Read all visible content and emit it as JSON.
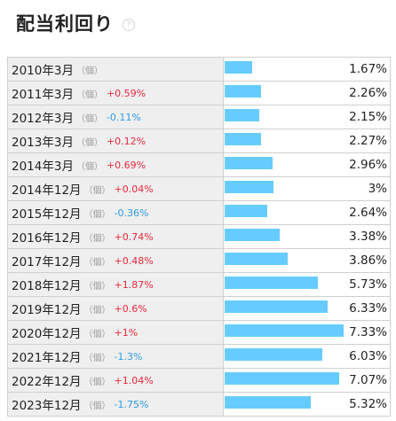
{
  "title": "配当利回り",
  "help_icon": "?",
  "unit_label": "（個）",
  "colors": {
    "bar": "#66ccff",
    "up": "#e8283c",
    "down": "#2e9be6",
    "label_bg": "#efefef"
  },
  "chart_data": {
    "type": "bar",
    "orientation": "horizontal",
    "title": "配当利回り",
    "categories": [
      "2010年3月",
      "2011年3月",
      "2012年3月",
      "2013年3月",
      "2014年3月",
      "2014年12月",
      "2015年12月",
      "2016年12月",
      "2017年12月",
      "2018年12月",
      "2019年12月",
      "2020年12月",
      "2021年12月",
      "2022年12月",
      "2023年12月"
    ],
    "values": [
      1.67,
      2.26,
      2.15,
      2.27,
      2.96,
      3,
      2.64,
      3.38,
      3.86,
      5.73,
      6.33,
      7.33,
      6.03,
      7.07,
      5.32
    ],
    "value_labels": [
      "1.67%",
      "2.26%",
      "2.15%",
      "2.27%",
      "2.96%",
      "3%",
      "2.64%",
      "3.38%",
      "3.86%",
      "5.73%",
      "6.33%",
      "7.33%",
      "6.03%",
      "7.07%",
      "5.32%"
    ],
    "changes": [
      "",
      "+0.59%",
      "-0.11%",
      "+0.12%",
      "+0.69%",
      "+0.04%",
      "-0.36%",
      "+0.74%",
      "+0.48%",
      "+1.87%",
      "+0.6%",
      "+1%",
      "-1.3%",
      "+1.04%",
      "-1.75%"
    ],
    "change_direction": [
      "",
      "up",
      "down",
      "up",
      "up",
      "up",
      "down",
      "up",
      "up",
      "up",
      "up",
      "up",
      "down",
      "up",
      "down"
    ],
    "xlim": [
      0,
      7.33
    ]
  }
}
